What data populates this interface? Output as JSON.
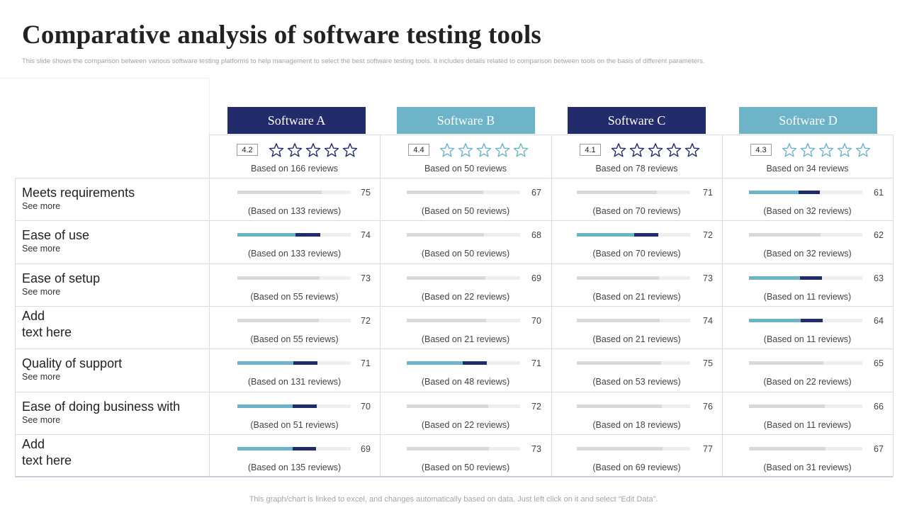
{
  "title": "Comparative analysis of software testing tools",
  "subtitle": "This slide shows the comparison between various software testing platforms to help management  to select the best software testing tools. It includes details related to comparison between tools on the basis of different parameters.",
  "footer": "This graph/chart is linked to excel,  and changes automatically based on data. Just left click on it and select “Edit Data”.",
  "colors": {
    "navy": "#232c6b",
    "teal": "#6db4c9",
    "grey_bar": "#d9d9d9",
    "track": "#eeeeee",
    "grid": "#d8dde3"
  },
  "star_icon": "star-outline-icon",
  "tools": [
    {
      "name": "Software A",
      "header_style": "dark",
      "rating": "4.2",
      "rating_value": 4.2,
      "reviews": "Based on 166 reviews"
    },
    {
      "name": "Software B",
      "header_style": "light",
      "rating": "4.4",
      "rating_value": 4.4,
      "reviews": "Based on 50 reviews"
    },
    {
      "name": "Software C",
      "header_style": "dark",
      "rating": "4.1",
      "rating_value": 4.1,
      "reviews": "Based on 78 reviews"
    },
    {
      "name": "Software D",
      "header_style": "light",
      "rating": "4.3",
      "rating_value": 4.3,
      "reviews": "Based on 34 reviews"
    }
  ],
  "criteria": [
    {
      "label": "Meets requirements",
      "see_more": "See more",
      "cells": [
        {
          "score": "75",
          "style": "grey",
          "reviews": "(Based on 133 reviews)"
        },
        {
          "score": "67",
          "style": "grey",
          "reviews": "(Based on 50 reviews)"
        },
        {
          "score": "71",
          "style": "grey",
          "reviews": "(Based on 70 reviews)"
        },
        {
          "score": "61",
          "style": "accent",
          "reviews": "(Based on 32 reviews)"
        }
      ]
    },
    {
      "label": "Ease of use",
      "see_more": "See more",
      "cells": [
        {
          "score": "74",
          "style": "accent",
          "reviews": "(Based on 133 reviews)"
        },
        {
          "score": "68",
          "style": "grey",
          "reviews": "(Based on 50 reviews)"
        },
        {
          "score": "72",
          "style": "accent",
          "reviews": "(Based on 70 reviews)"
        },
        {
          "score": "62",
          "style": "grey",
          "reviews": "(Based on 32 reviews)"
        }
      ]
    },
    {
      "label": "Ease of setup",
      "see_more": "See more",
      "cells": [
        {
          "score": "73",
          "style": "grey",
          "reviews": "(Based on 55 reviews)"
        },
        {
          "score": "69",
          "style": "grey",
          "reviews": "(Based on 22 reviews)"
        },
        {
          "score": "73",
          "style": "grey",
          "reviews": "(Based on 21 reviews)"
        },
        {
          "score": "63",
          "style": "accent",
          "reviews": "(Based on 11 reviews)"
        }
      ]
    },
    {
      "label": "Add\ntext here",
      "see_more": "",
      "cells": [
        {
          "score": "72",
          "style": "grey",
          "reviews": "(Based on 55 reviews)"
        },
        {
          "score": "70",
          "style": "grey",
          "reviews": "(Based on 21 reviews)"
        },
        {
          "score": "74",
          "style": "grey",
          "reviews": "(Based on 21 reviews)"
        },
        {
          "score": "64",
          "style": "accent",
          "reviews": "(Based on 11 reviews)"
        }
      ]
    },
    {
      "label": "Quality of support",
      "see_more": "See more",
      "cells": [
        {
          "score": "71",
          "style": "accent",
          "reviews": "(Based on 131 reviews)"
        },
        {
          "score": "71",
          "style": "accent",
          "reviews": "(Based on 48 reviews)"
        },
        {
          "score": "75",
          "style": "grey",
          "reviews": "(Based on 53 reviews)"
        },
        {
          "score": "65",
          "style": "grey",
          "reviews": "(Based on 22 reviews)"
        }
      ]
    },
    {
      "label": "Ease of doing business with",
      "see_more": "See more",
      "cells": [
        {
          "score": "70",
          "style": "accent",
          "reviews": "(Based on 51 reviews)"
        },
        {
          "score": "72",
          "style": "grey",
          "reviews": "(Based on 22 reviews)"
        },
        {
          "score": "76",
          "style": "grey",
          "reviews": "(Based on 18 reviews)"
        },
        {
          "score": "66",
          "style": "grey",
          "reviews": "(Based on 11 reviews)"
        }
      ]
    },
    {
      "label": "Add\ntext here",
      "see_more": "",
      "cells": [
        {
          "score": "69",
          "style": "accent",
          "reviews": "(Based on 135 reviews)"
        },
        {
          "score": "73",
          "style": "grey",
          "reviews": "(Based on 50 reviews)"
        },
        {
          "score": "77",
          "style": "grey",
          "reviews": "(Based on 69 reviews)"
        },
        {
          "score": "67",
          "style": "grey",
          "reviews": "(Based on 31 reviews)"
        }
      ]
    }
  ]
}
